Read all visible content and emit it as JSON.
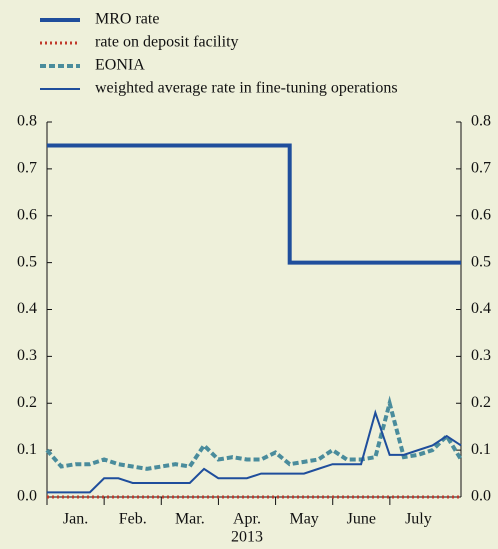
{
  "chart_data": {
    "type": "line",
    "x_labels": [
      "Jan.",
      "Feb.",
      "Mar.",
      "Apr.",
      "May",
      "June",
      "July"
    ],
    "x_sublabel": "2013",
    "ylim": [
      0,
      0.8
    ],
    "yticks": [
      {
        "value": 0,
        "label": "0.0"
      },
      0.1,
      0.2,
      0.3,
      0.4,
      0.5,
      0.6,
      0.7,
      0.8
    ],
    "y2lim": [
      0,
      0.8
    ],
    "y2ticks": [
      {
        "value": 0,
        "label": "0.0"
      },
      0.1,
      0.2,
      0.3,
      0.4,
      0.5,
      0.6,
      0.7,
      0.8
    ],
    "series": [
      {
        "name": "MRO rate",
        "color": "#1f4e9c",
        "style": "solid-thick",
        "step": true,
        "values": [
          0.75,
          0.75,
          0.75,
          0.75,
          0.75,
          0.75,
          0.75,
          0.75,
          0.75,
          0.75,
          0.75,
          0.75,
          0.75,
          0.75,
          0.75,
          0.75,
          0.75,
          0.5,
          0.5,
          0.5,
          0.5,
          0.5,
          0.5,
          0.5,
          0.5,
          0.5,
          0.5,
          0.5,
          0.5,
          0.5
        ]
      },
      {
        "name": "rate on deposit facility",
        "color": "#c0392b",
        "style": "dotted",
        "values": [
          0,
          0,
          0,
          0,
          0,
          0,
          0,
          0,
          0,
          0,
          0,
          0,
          0,
          0,
          0,
          0,
          0,
          0,
          0,
          0,
          0,
          0,
          0,
          0,
          0,
          0,
          0,
          0,
          0,
          0
        ]
      },
      {
        "name": "EONIA",
        "color": "#4a8c9c",
        "style": "dashed",
        "values": [
          0.1,
          0.065,
          0.07,
          0.07,
          0.08,
          0.07,
          0.065,
          0.06,
          0.065,
          0.07,
          0.065,
          0.11,
          0.08,
          0.085,
          0.08,
          0.08,
          0.095,
          0.07,
          0.075,
          0.08,
          0.1,
          0.08,
          0.08,
          0.085,
          0.2,
          0.085,
          0.09,
          0.1,
          0.13,
          0.08
        ]
      },
      {
        "name": "weighted average rate in fine-tuning operations",
        "color": "#1f4e9c",
        "style": "solid-thin",
        "values": [
          0.01,
          0.01,
          0.01,
          0.01,
          0.04,
          0.04,
          0.03,
          0.03,
          0.03,
          0.03,
          0.03,
          0.06,
          0.04,
          0.04,
          0.04,
          0.05,
          0.05,
          0.05,
          0.05,
          0.06,
          0.07,
          0.07,
          0.07,
          0.18,
          0.09,
          0.09,
          0.1,
          0.11,
          0.13,
          0.11
        ]
      }
    ]
  }
}
